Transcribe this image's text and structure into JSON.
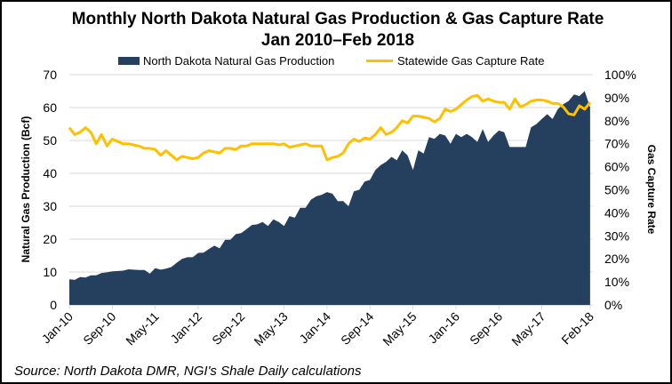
{
  "chart_data": {
    "type": "area+line",
    "title": "Monthly North Dakota Natural Gas Production & Gas Capture Rate",
    "subtitle": "Jan 2010–Feb 2018",
    "ylabel": "Natural Gas Production (Bcf)",
    "y2label": "Gas Capture Rate",
    "ylim": [
      0,
      70
    ],
    "y2lim": [
      0,
      100
    ],
    "yticks": [
      "0",
      "10",
      "20",
      "30",
      "40",
      "50",
      "60",
      "70"
    ],
    "y2ticks": [
      "0%",
      "10%",
      "20%",
      "30%",
      "40%",
      "50%",
      "60%",
      "70%",
      "80%",
      "90%",
      "100%"
    ],
    "xtick_labels": [
      "Jan-10",
      "Sep-10",
      "May-11",
      "Jan-12",
      "Sep-12",
      "May-13",
      "Jan-14",
      "Sep-14",
      "May-15",
      "Jan-16",
      "Sep-16",
      "May-17",
      "Feb-18"
    ],
    "x_start": "Jan-10",
    "x_end": "Feb-18",
    "grid": true,
    "legend_position": "top",
    "source": "Source: North Dakota DMR, NGI's Shale Daily calculations",
    "series": [
      {
        "name": "North Dakota Natural Gas Production",
        "type": "area",
        "axis": "left",
        "color": "#253f5f",
        "values": [
          7.8,
          7.6,
          8.5,
          8.3,
          9.0,
          9.0,
          9.7,
          9.9,
          10.2,
          10.3,
          10.4,
          10.8,
          10.7,
          10.6,
          10.6,
          9.5,
          11.2,
          10.7,
          11.0,
          11.5,
          12.8,
          14.0,
          14.5,
          14.5,
          15.8,
          15.9,
          17.0,
          18.0,
          17.2,
          19.8,
          19.8,
          21.5,
          21.8,
          23.0,
          24.3,
          24.5,
          25.2,
          24.0,
          26.0,
          25.2,
          24.0,
          27.0,
          26.5,
          29.5,
          29.5,
          32.0,
          33.0,
          33.5,
          34.3,
          33.8,
          31.5,
          31.6,
          30.0,
          34.5,
          35.0,
          37.5,
          38.0,
          41.0,
          42.5,
          43.5,
          45.0,
          44.0,
          47.0,
          45.5,
          41.0,
          47.0,
          46.0,
          51.0,
          50.5,
          52.0,
          51.5,
          49.0,
          52.0,
          51.0,
          52.0,
          51.0,
          49.5,
          53.5,
          49.5,
          51.5,
          53.0,
          52.5,
          48.0,
          48.0,
          48.0,
          48.0,
          54.0,
          55.0,
          56.5,
          58.0,
          56.5,
          59.5,
          61.0,
          62.0,
          64.0,
          63.5,
          65.0,
          60.0
        ]
      },
      {
        "name": "Statewide Gas Capture Rate",
        "type": "line",
        "axis": "right",
        "unit": "%",
        "color": "#ffc000",
        "values": [
          77,
          74,
          75,
          77,
          75,
          70,
          74,
          69,
          72,
          71,
          70,
          70,
          69.5,
          69,
          68,
          68,
          67.5,
          65,
          67,
          65,
          63,
          64.5,
          64,
          63.5,
          64,
          66,
          67,
          66.5,
          66,
          68,
          68,
          67.5,
          69,
          69,
          70,
          70,
          70,
          70,
          70,
          69.5,
          70,
          68.5,
          69,
          69.5,
          70,
          69,
          69,
          69,
          63,
          64,
          64.5,
          66,
          70,
          72,
          71,
          72.5,
          72,
          74,
          77,
          74,
          75,
          77,
          80,
          79,
          82,
          82,
          81.5,
          81,
          79.5,
          81,
          85,
          84,
          85,
          87,
          89,
          90.5,
          91,
          88.5,
          89.5,
          88.5,
          88,
          88,
          85,
          89.5,
          86,
          87,
          88.5,
          89,
          89,
          88.5,
          87.5,
          87.5,
          86,
          83,
          82.5,
          86.5,
          85,
          88
        ]
      }
    ]
  }
}
